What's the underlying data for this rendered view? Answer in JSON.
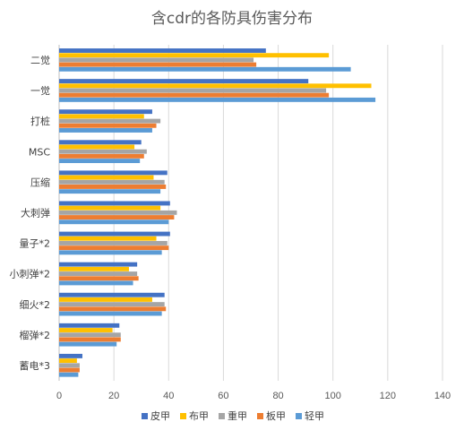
{
  "chart_data": {
    "type": "bar",
    "orientation": "horizontal",
    "title": "含cdr的各防具伤害分布",
    "categories": [
      "二觉",
      "一觉",
      "打桩",
      "MSC",
      "压缩",
      "大刺弹",
      "量子*2",
      "小刺弹*2",
      "细火*2",
      "榴弹*2",
      "蓄电*3"
    ],
    "series": [
      {
        "name": "皮甲",
        "color": "#4472c4",
        "values": [
          75.5,
          91,
          34,
          30,
          39.5,
          40.5,
          40.5,
          28.5,
          38.5,
          22,
          8.5
        ]
      },
      {
        "name": "布甲",
        "color": "#ffc000",
        "values": [
          98.5,
          114,
          31,
          27.5,
          34.5,
          37,
          35.5,
          25.5,
          34,
          19.5,
          6.5
        ]
      },
      {
        "name": "重甲",
        "color": "#a5a5a5",
        "values": [
          71,
          97.5,
          37,
          32,
          38.5,
          43,
          39.5,
          28.5,
          38.5,
          22.5,
          7.5
        ]
      },
      {
        "name": "板甲",
        "color": "#ed7d31",
        "values": [
          72,
          98.5,
          35.5,
          31,
          39,
          42,
          40,
          29,
          39,
          22.5,
          7.5
        ]
      },
      {
        "name": "轻甲",
        "color": "#5b9bd5",
        "values": [
          106.5,
          115.5,
          34,
          29.5,
          37,
          40,
          37.5,
          27,
          37.5,
          21,
          7
        ]
      }
    ],
    "xlim": [
      0,
      140
    ],
    "xticks": [
      "0",
      "20",
      "40",
      "60",
      "80",
      "100",
      "120",
      "140"
    ],
    "grid": true,
    "legend": "bottom"
  }
}
